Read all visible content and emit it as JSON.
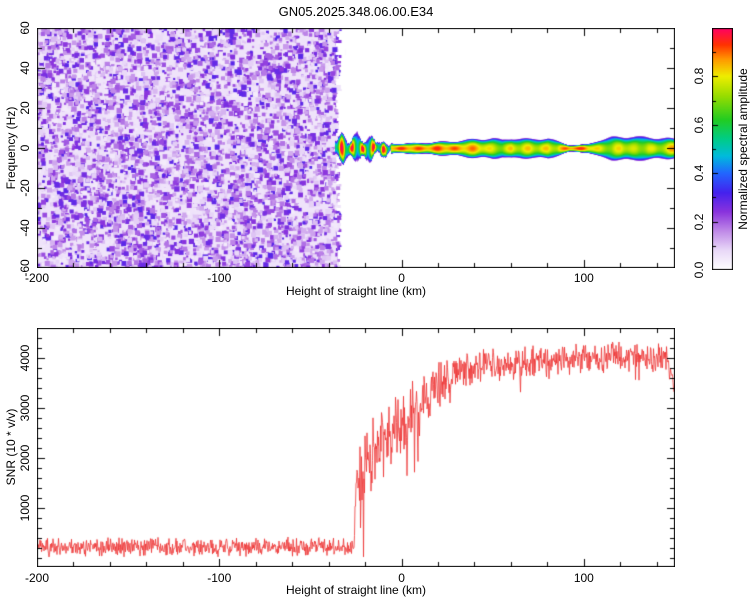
{
  "title": "GN05.2025.348.06.00.E34",
  "chart_data": [
    {
      "type": "heatmap",
      "description": "Radar meteor head-echo spectrogram: broadband purple speckle noise below -35 km, then a narrow high-amplitude echo stripe centered on 0 Hz extending to +150 km",
      "xlabel": "Height of straight line (km)",
      "ylabel": "Frequency (Hz)",
      "x_range": [
        -200,
        150
      ],
      "y_range": [
        -60,
        60
      ],
      "x_ticks": [
        "-200",
        "-100",
        "0",
        "100"
      ],
      "x_tick_values": [
        -200,
        -100,
        0,
        100
      ],
      "x_minor_step": 20,
      "y_ticks": [
        "60",
        "40",
        "20",
        "0",
        "-20",
        "-40",
        "-60"
      ],
      "y_tick_values": [
        60,
        40,
        20,
        0,
        -20,
        -40,
        -60
      ],
      "y_minor_step": 10,
      "noise_region": {
        "x_start": -200,
        "x_end": -35,
        "amplitude_min": 0.04,
        "amplitude_max": 0.3
      },
      "signal_stripe": {
        "center_freq_hz": 0,
        "x_start": -35,
        "blob_cluster_x_end": -6,
        "x_end": 150,
        "halo_halfwidth_hz": [
          [
            -35,
            7
          ],
          [
            -32,
            7.5
          ],
          [
            -28,
            6.5
          ],
          [
            -24,
            7.5
          ],
          [
            -20,
            7
          ],
          [
            -16,
            6
          ],
          [
            -12,
            4.5
          ],
          [
            -8,
            3.2
          ],
          [
            -4,
            2.7
          ],
          [
            0,
            2.7
          ],
          [
            10,
            3
          ],
          [
            20,
            3.5
          ],
          [
            30,
            4
          ],
          [
            40,
            5
          ],
          [
            50,
            5.5
          ],
          [
            55,
            4.6
          ],
          [
            60,
            5.5
          ],
          [
            70,
            5
          ],
          [
            80,
            5.5
          ],
          [
            88,
            3
          ],
          [
            92,
            1.9
          ],
          [
            96,
            1.9
          ],
          [
            102,
            2.3
          ],
          [
            108,
            4.5
          ],
          [
            115,
            6
          ],
          [
            125,
            6.5
          ],
          [
            135,
            6
          ],
          [
            145,
            5.5
          ],
          [
            150,
            5
          ]
        ],
        "core_amplitude": [
          [
            -35,
            0.95
          ],
          [
            -30,
            0.95
          ],
          [
            -26,
            0.9
          ],
          [
            -22,
            0.95
          ],
          [
            -18,
            0.9
          ],
          [
            -14,
            0.95
          ],
          [
            -10,
            0.92
          ],
          [
            0,
            0.95
          ],
          [
            10,
            0.93
          ],
          [
            20,
            0.95
          ],
          [
            30,
            0.92
          ],
          [
            40,
            0.9
          ],
          [
            45,
            0.86
          ],
          [
            50,
            0.8
          ],
          [
            55,
            0.76
          ],
          [
            60,
            0.86
          ],
          [
            65,
            0.8
          ],
          [
            70,
            0.86
          ],
          [
            75,
            0.8
          ],
          [
            80,
            0.86
          ],
          [
            85,
            0.8
          ],
          [
            90,
            0.95
          ],
          [
            95,
            0.96
          ],
          [
            100,
            0.95
          ],
          [
            105,
            0.86
          ],
          [
            110,
            0.8
          ],
          [
            115,
            0.76
          ],
          [
            120,
            0.86
          ],
          [
            125,
            0.8
          ],
          [
            130,
            0.76
          ],
          [
            135,
            0.82
          ],
          [
            140,
            0.78
          ],
          [
            145,
            0.82
          ],
          [
            150,
            0.92
          ]
        ]
      },
      "colorbar": {
        "label": "Normalized spectral amplitude",
        "ticks": [
          "0.0",
          "0.2",
          "0.4",
          "0.6",
          "0.8"
        ],
        "tick_values": [
          0,
          0.2,
          0.4,
          0.6,
          0.8
        ],
        "minor_step": 0.1,
        "range": [
          0,
          1
        ],
        "stops": [
          [
            0,
            "#ffffff"
          ],
          [
            0.08,
            "#e9d9f8"
          ],
          [
            0.16,
            "#c08ae8"
          ],
          [
            0.24,
            "#8a33dd"
          ],
          [
            0.32,
            "#4422ee"
          ],
          [
            0.4,
            "#2266ff"
          ],
          [
            0.47,
            "#00bbdd"
          ],
          [
            0.54,
            "#00cc88"
          ],
          [
            0.62,
            "#22cc22"
          ],
          [
            0.72,
            "#99dd00"
          ],
          [
            0.8,
            "#eeee00"
          ],
          [
            0.87,
            "#ff9900"
          ],
          [
            0.93,
            "#ff3300"
          ],
          [
            1,
            "#ff0066"
          ]
        ]
      }
    },
    {
      "type": "line",
      "description": "SNR vs height: flat noise floor (~200) up to -25 km, sharp jump then noisy rise to a plateau near 4000 out to +150 km",
      "xlabel": "Height of straight line (km)",
      "ylabel": "SNR (10 * v/v)",
      "x_range": [
        -200,
        150
      ],
      "y_range": [
        -180,
        4600
      ],
      "x_ticks": [
        "-200",
        "-100",
        "0",
        "100"
      ],
      "x_tick_values": [
        -200,
        -100,
        0,
        100
      ],
      "x_minor_step": 20,
      "y_ticks": [
        "1000",
        "2000",
        "3000",
        "4000"
      ],
      "y_tick_values": [
        1000,
        2000,
        3000,
        4000
      ],
      "y_minor_step": 200,
      "line_color": "#ee3333",
      "series": [
        {
          "name": "SNR",
          "jump_x": -25,
          "mean_envelope": [
            [
              -200,
              220
            ],
            [
              -26,
              220
            ],
            [
              -25,
              1700
            ],
            [
              -20,
              1850
            ],
            [
              -15,
              2050
            ],
            [
              -10,
              2250
            ],
            [
              -5,
              2450
            ],
            [
              0,
              2650
            ],
            [
              5,
              2850
            ],
            [
              10,
              3050
            ],
            [
              15,
              3250
            ],
            [
              20,
              3450
            ],
            [
              25,
              3600
            ],
            [
              30,
              3720
            ],
            [
              40,
              3830
            ],
            [
              50,
              3880
            ],
            [
              60,
              3870
            ],
            [
              70,
              3900
            ],
            [
              80,
              3950
            ],
            [
              90,
              3930
            ],
            [
              100,
              4000
            ],
            [
              110,
              3990
            ],
            [
              120,
              4050
            ],
            [
              130,
              4040
            ],
            [
              140,
              4000
            ],
            [
              146,
              3950
            ],
            [
              150,
              3500
            ]
          ],
          "noise_amplitude": [
            [
              -200,
              170
            ],
            [
              -26,
              170
            ],
            [
              -25,
              520
            ],
            [
              -20,
              620
            ],
            [
              -15,
              660
            ],
            [
              -10,
              660
            ],
            [
              -5,
              620
            ],
            [
              0,
              600
            ],
            [
              5,
              560
            ],
            [
              10,
              520
            ],
            [
              15,
              480
            ],
            [
              20,
              430
            ],
            [
              30,
              360
            ],
            [
              40,
              290
            ],
            [
              60,
              300
            ],
            [
              100,
              280
            ],
            [
              150,
              260
            ]
          ],
          "deep_dip_zone": [
            -24,
            20
          ]
        }
      ]
    }
  ]
}
